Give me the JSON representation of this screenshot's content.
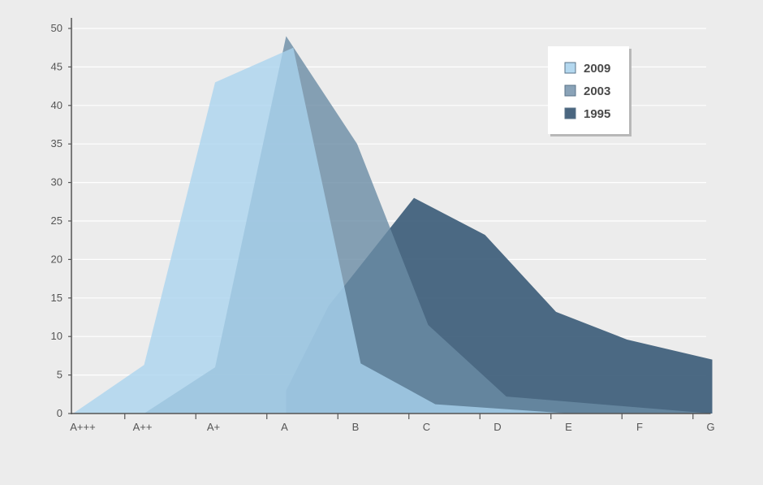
{
  "chart_data": {
    "type": "area",
    "categories": [
      "A+++",
      "A++",
      "A+",
      "A",
      "B",
      "C",
      "D",
      "E",
      "F",
      "G"
    ],
    "y_ticks": [
      "0",
      "5",
      "10",
      "15",
      "20",
      "25",
      "30",
      "35",
      "40",
      "45",
      "50"
    ],
    "ylim": [
      0,
      50
    ],
    "grid": true,
    "legend_position": "top-right",
    "series": [
      {
        "name": "1995",
        "color": "#3d5d7a",
        "opacity": 0.92,
        "points": [
          [
            3,
            3
          ],
          [
            3.6,
            14
          ],
          [
            4.8,
            28
          ],
          [
            5.8,
            23.2
          ],
          [
            6.8,
            13.2
          ],
          [
            7.8,
            9.6
          ],
          [
            9,
            7
          ]
        ]
      },
      {
        "name": "2003",
        "color": "#6a8ca5",
        "opacity": 0.8,
        "points": [
          [
            1,
            0
          ],
          [
            2,
            6
          ],
          [
            3,
            49
          ],
          [
            4,
            35
          ],
          [
            5,
            11.5
          ],
          [
            6.1,
            2.2
          ],
          [
            9,
            0
          ]
        ]
      },
      {
        "name": "2009",
        "color": "#a9d3ee",
        "opacity": 0.78,
        "points": [
          [
            0,
            0
          ],
          [
            1,
            6.3
          ],
          [
            2,
            43
          ],
          [
            3.1,
            47.5
          ],
          [
            4.05,
            6.5
          ],
          [
            5.1,
            1.2
          ],
          [
            7,
            0
          ]
        ]
      }
    ],
    "legend": [
      {
        "label": "2009",
        "color": "#b4d8ef"
      },
      {
        "label": "2003",
        "color": "#8aa3b8"
      },
      {
        "label": "1995",
        "color": "#4a6680"
      }
    ]
  }
}
